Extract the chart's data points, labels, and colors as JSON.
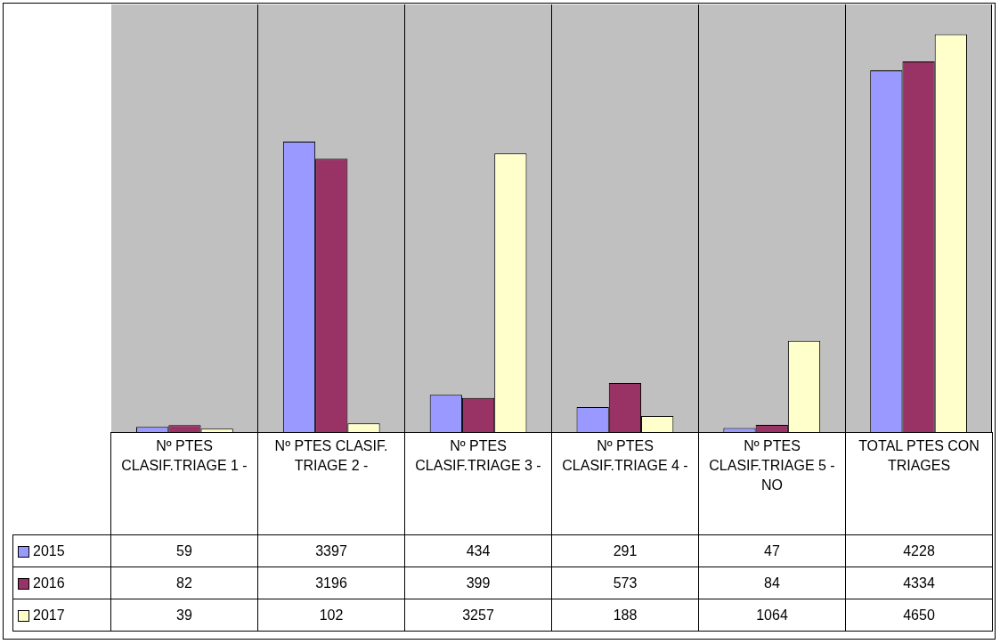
{
  "chart_data": {
    "type": "bar",
    "categories": [
      "Nº PTES CLASIF.TRIAGE 1 -",
      "Nº PTES CLASIF. TRIAGE 2 -",
      "Nº PTES CLASIF.TRIAGE 3 -",
      "Nº PTES CLASIF.TRIAGE 4 -",
      "Nº PTES CLASIF.TRIAGE 5 - NO",
      "TOTAL PTES CON TRIAGES"
    ],
    "series": [
      {
        "name": "2015",
        "color": "#9999ff",
        "values": [
          59,
          3397,
          434,
          291,
          47,
          4228
        ]
      },
      {
        "name": "2016",
        "color": "#993366",
        "values": [
          82,
          3196,
          399,
          573,
          84,
          4334
        ]
      },
      {
        "name": "2017",
        "color": "#ffffcc",
        "values": [
          39,
          102,
          3257,
          188,
          1064,
          4650
        ]
      }
    ],
    "data_labels": true,
    "legend": "bottom left",
    "grid": "x"
  }
}
